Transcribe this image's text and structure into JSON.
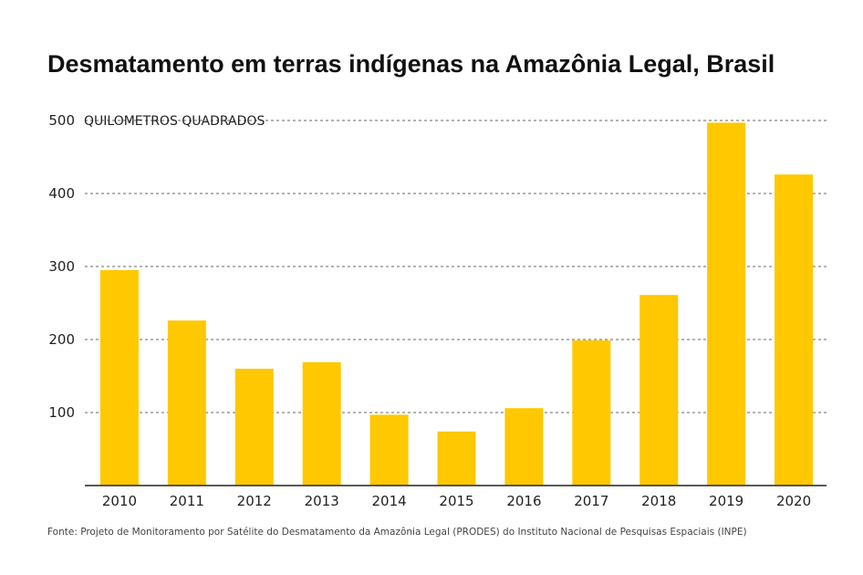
{
  "chart_data": {
    "type": "bar",
    "title": "Desmatamento em terras indígenas na Amazônia Legal, Brasil",
    "ylabel": "QUILOMETROS QUADRADOS",
    "categories": [
      "2010",
      "2011",
      "2012",
      "2013",
      "2014",
      "2015",
      "2016",
      "2017",
      "2018",
      "2019",
      "2020"
    ],
    "values": [
      295,
      226,
      160,
      169,
      97,
      74,
      106,
      199,
      261,
      497,
      426
    ],
    "ylim": [
      0,
      500
    ],
    "yticks": [
      100,
      200,
      300,
      400,
      500
    ],
    "grid": true,
    "bar_color": "#FFC800",
    "source": "Fonte: Projeto de Monitoramento por Satélite do Desmatamento da Amazônia Legal (PRODES) do Instituto Nacional de Pesquisas Espaciais (INPE)"
  }
}
